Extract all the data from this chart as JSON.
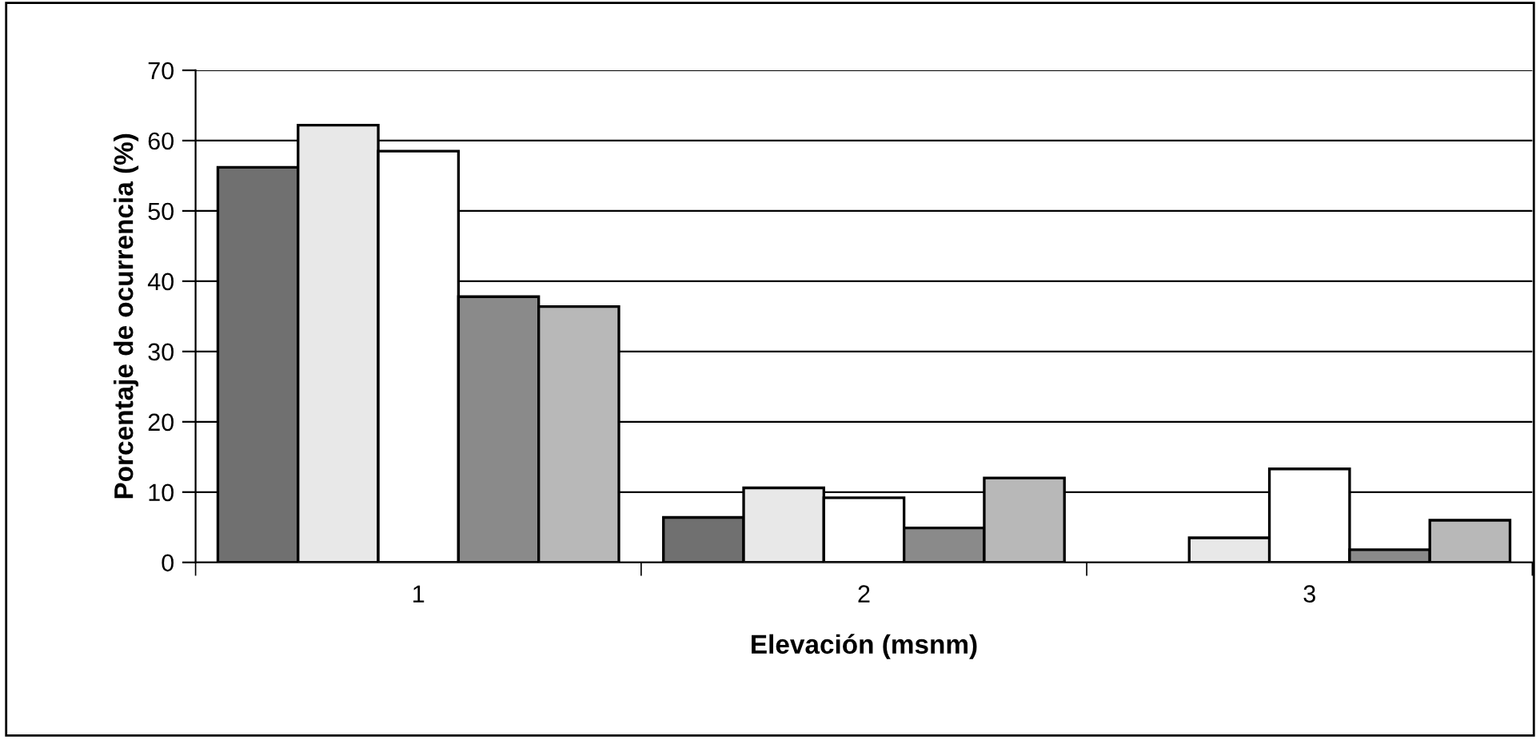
{
  "chart_data": {
    "type": "bar",
    "xlabel": "Elevación (msnm)",
    "ylabel": "Porcentaje de ocurrencia (%)",
    "categories": [
      "1",
      "2",
      "3"
    ],
    "series": [
      {
        "color": "#707070",
        "values": [
          56.2,
          6.4,
          null
        ]
      },
      {
        "color": "#e8e8e8",
        "values": [
          62.2,
          10.6,
          3.5
        ]
      },
      {
        "color": "#ffffff",
        "values": [
          58.5,
          9.2,
          13.3
        ]
      },
      {
        "color": "#8a8a8a",
        "values": [
          37.8,
          4.9,
          1.8
        ]
      },
      {
        "color": "#b8b8b8",
        "values": [
          36.4,
          12.0,
          6.0
        ]
      }
    ],
    "ylim": [
      0,
      70
    ],
    "yticks": [
      0,
      10,
      20,
      30,
      40,
      50,
      60,
      70
    ],
    "grid": "y",
    "legend": false
  }
}
